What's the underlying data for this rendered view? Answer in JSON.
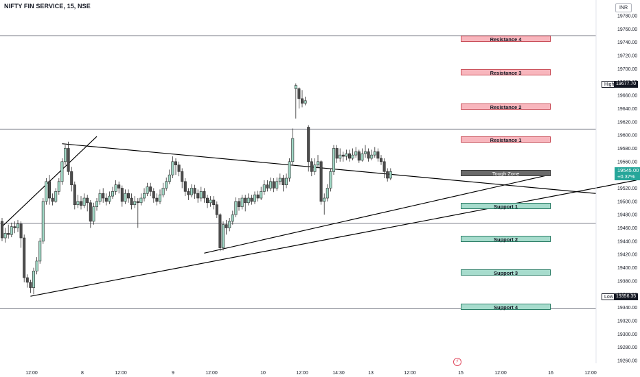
{
  "header": {
    "symbol_title": "NIFTY FIN SERVICE, 15, NSE",
    "currency": "INR"
  },
  "chart_data": {
    "type": "candlestick",
    "title": "NIFTY FIN SERVICE, 15, NSE",
    "currency": "INR",
    "y_axis": {
      "ticks": [
        19780,
        19760,
        19740,
        19720,
        19700,
        19680,
        19660,
        19640,
        19620,
        19600,
        19580,
        19560,
        19540,
        19520,
        19500,
        19480,
        19460,
        19440,
        19420,
        19400,
        19380,
        19360,
        19340,
        19320,
        19300,
        19280,
        19260
      ],
      "tick_labels": [
        "19780.00",
        "19760.00",
        "19740.00",
        "19720.00",
        "19700.00",
        "19680.00",
        "19660.00",
        "19640.00",
        "19620.00",
        "19600.00",
        "19580.00",
        "19560.00",
        "19540.00",
        "19520.00",
        "19500.00",
        "19480.00",
        "19460.00",
        "19440.00",
        "19420.00",
        "19400.00",
        "19380.00",
        "19360.00",
        "19340.00",
        "19320.00",
        "19300.00",
        "19280.00",
        "19260.00"
      ],
      "range": [
        19252,
        19790
      ]
    },
    "x_axis": {
      "tick_labels": [
        "12:00",
        "8",
        "12:00",
        "9",
        "12:00",
        "10",
        "12:00",
        "14:30",
        "13",
        "12:00",
        "15",
        "12:00",
        "16",
        "12:00"
      ]
    },
    "horizontal_levels": [
      19750,
      19609,
      19467,
      19338
    ],
    "annotations": {
      "high": {
        "label": "High",
        "value": "19677.70"
      },
      "low": {
        "label": "Low",
        "value": "19356.35"
      },
      "last": {
        "value": "19545.00",
        "change": "+0.37%"
      }
    },
    "zones": [
      {
        "label": "Resistance 4",
        "kind": "resistance",
        "value": 19745
      },
      {
        "label": "Resistance 3",
        "kind": "resistance",
        "value": 19695
      },
      {
        "label": "Resistance 2",
        "kind": "resistance",
        "value": 19643
      },
      {
        "label": "Resistance 1",
        "kind": "resistance",
        "value": 19593
      },
      {
        "label": "Tough Zone",
        "kind": "tough",
        "value": 19543
      },
      {
        "label": "Support 1",
        "kind": "support",
        "value": 19493
      },
      {
        "label": "Support 2",
        "kind": "support",
        "value": 19443
      },
      {
        "label": "Support 3",
        "kind": "support",
        "value": 19393
      },
      {
        "label": "Support 4",
        "kind": "support",
        "value": 19341
      }
    ],
    "candles": [
      [
        19470,
        19445,
        19475,
        19440
      ],
      [
        19445,
        19452,
        19460,
        19438
      ],
      [
        19452,
        19450,
        19465,
        19444
      ],
      [
        19450,
        19462,
        19468,
        19446
      ],
      [
        19462,
        19460,
        19470,
        19452
      ],
      [
        19460,
        19466,
        19472,
        19454
      ],
      [
        19466,
        19445,
        19470,
        19430
      ],
      [
        19445,
        19385,
        19450,
        19378
      ],
      [
        19385,
        19378,
        19390,
        19370
      ],
      [
        19378,
        19370,
        19382,
        19362
      ],
      [
        19370,
        19395,
        19400,
        19360
      ],
      [
        19395,
        19410,
        19416,
        19390
      ],
      [
        19410,
        19440,
        19445,
        19406
      ],
      [
        19440,
        19500,
        19505,
        19436
      ],
      [
        19500,
        19530,
        19535,
        19495
      ],
      [
        19530,
        19505,
        19540,
        19495
      ],
      [
        19505,
        19500,
        19512,
        19494
      ],
      [
        19500,
        19515,
        19520,
        19498
      ],
      [
        19515,
        19530,
        19535,
        19510
      ],
      [
        19530,
        19560,
        19565,
        19525
      ],
      [
        19560,
        19580,
        19585,
        19555
      ],
      [
        19580,
        19545,
        19590,
        19540
      ],
      [
        19545,
        19525,
        19552,
        19515
      ],
      [
        19525,
        19495,
        19530,
        19488
      ],
      [
        19495,
        19500,
        19510,
        19490
      ],
      [
        19500,
        19494,
        19508,
        19488
      ],
      [
        19494,
        19505,
        19512,
        19490
      ],
      [
        19505,
        19498,
        19510,
        19485
      ],
      [
        19498,
        19470,
        19502,
        19460
      ],
      [
        19470,
        19492,
        19498,
        19465
      ],
      [
        19492,
        19500,
        19505,
        19486
      ],
      [
        19500,
        19512,
        19518,
        19495
      ],
      [
        19512,
        19505,
        19520,
        19498
      ],
      [
        19505,
        19500,
        19512,
        19494
      ],
      [
        19500,
        19508,
        19515,
        19496
      ],
      [
        19508,
        19515,
        19522,
        19504
      ],
      [
        19515,
        19525,
        19532,
        19510
      ],
      [
        19525,
        19520,
        19530,
        19512
      ],
      [
        19520,
        19500,
        19524,
        19492
      ],
      [
        19500,
        19512,
        19518,
        19496
      ],
      [
        19512,
        19505,
        19518,
        19498
      ],
      [
        19505,
        19495,
        19512,
        19488
      ],
      [
        19495,
        19500,
        19508,
        19490
      ],
      [
        19500,
        19498,
        19505,
        19460
      ],
      [
        19498,
        19505,
        19512,
        19494
      ],
      [
        19505,
        19512,
        19520,
        19500
      ],
      [
        19512,
        19522,
        19528,
        19508
      ],
      [
        19522,
        19515,
        19528,
        19508
      ],
      [
        19515,
        19505,
        19520,
        19498
      ],
      [
        19505,
        19500,
        19512,
        19494
      ],
      [
        19500,
        19510,
        19518,
        19496
      ],
      [
        19510,
        19520,
        19528,
        19506
      ],
      [
        19520,
        19530,
        19536,
        19516
      ],
      [
        19530,
        19540,
        19548,
        19526
      ],
      [
        19540,
        19560,
        19568,
        19535
      ],
      [
        19560,
        19555,
        19565,
        19540
      ],
      [
        19555,
        19545,
        19560,
        19538
      ],
      [
        19545,
        19530,
        19550,
        19520
      ],
      [
        19530,
        19515,
        19535,
        19508
      ],
      [
        19515,
        19510,
        19520,
        19502
      ],
      [
        19510,
        19520,
        19526,
        19506
      ],
      [
        19520,
        19512,
        19525,
        19504
      ],
      [
        19512,
        19505,
        19518,
        19498
      ],
      [
        19505,
        19515,
        19522,
        19500
      ],
      [
        19515,
        19505,
        19520,
        19498
      ],
      [
        19505,
        19498,
        19510,
        19490
      ],
      [
        19498,
        19502,
        19508,
        19492
      ],
      [
        19502,
        19495,
        19508,
        19488
      ],
      [
        19495,
        19480,
        19500,
        19475
      ],
      [
        19480,
        19430,
        19482,
        19425
      ],
      [
        19430,
        19465,
        19470,
        19426
      ],
      [
        19465,
        19460,
        19472,
        19450
      ],
      [
        19460,
        19470,
        19475,
        19455
      ],
      [
        19470,
        19480,
        19486,
        19465
      ],
      [
        19480,
        19500,
        19506,
        19476
      ],
      [
        19500,
        19492,
        19505,
        19486
      ],
      [
        19492,
        19505,
        19510,
        19488
      ],
      [
        19505,
        19498,
        19510,
        19485
      ],
      [
        19498,
        19505,
        19512,
        19494
      ],
      [
        19505,
        19500,
        19510,
        19495
      ],
      [
        19500,
        19510,
        19515,
        19496
      ],
      [
        19510,
        19505,
        19516,
        19500
      ],
      [
        19505,
        19515,
        19522,
        19502
      ],
      [
        19515,
        19525,
        19532,
        19510
      ],
      [
        19525,
        19520,
        19532,
        19515
      ],
      [
        19520,
        19530,
        19536,
        19516
      ],
      [
        19530,
        19520,
        19535,
        19514
      ],
      [
        19520,
        19530,
        19536,
        19516
      ],
      [
        19530,
        19535,
        19542,
        19525
      ],
      [
        19535,
        19525,
        19540,
        19515
      ],
      [
        19525,
        19535,
        19542,
        19520
      ],
      [
        19535,
        19560,
        19565,
        19530
      ],
      [
        19560,
        19595,
        19610,
        19555
      ],
      [
        19670,
        19675,
        19678,
        19625
      ],
      [
        19670,
        19655,
        19672,
        19640
      ],
      [
        19655,
        19648,
        19668,
        19642
      ],
      [
        19648,
        19652,
        19658,
        19645
      ],
      [
        19612,
        19560,
        19615,
        19545
      ],
      [
        19560,
        19545,
        19565,
        19538
      ],
      [
        19545,
        19555,
        19565,
        19540
      ],
      [
        19555,
        19560,
        19570,
        19550
      ],
      [
        19560,
        19500,
        19562,
        19495
      ],
      [
        19500,
        19505,
        19512,
        19480
      ],
      [
        19505,
        19520,
        19526,
        19500
      ],
      [
        19520,
        19545,
        19550,
        19515
      ],
      [
        19545,
        19580,
        19585,
        19540
      ],
      [
        19580,
        19565,
        19585,
        19558
      ],
      [
        19565,
        19570,
        19580,
        19560
      ],
      [
        19570,
        19568,
        19575,
        19560
      ],
      [
        19568,
        19572,
        19578,
        19562
      ],
      [
        19572,
        19565,
        19578,
        19560
      ],
      [
        19565,
        19570,
        19580,
        19562
      ],
      [
        19570,
        19575,
        19582,
        19566
      ],
      [
        19575,
        19562,
        19578,
        19558
      ],
      [
        19562,
        19572,
        19580,
        19560
      ],
      [
        19572,
        19575,
        19585,
        19566
      ],
      [
        19575,
        19565,
        19580,
        19560
      ],
      [
        19565,
        19570,
        19578,
        19562
      ],
      [
        19570,
        19575,
        19582,
        19566
      ],
      [
        19575,
        19565,
        19580,
        19560
      ],
      [
        19565,
        19560,
        19570,
        19555
      ],
      [
        19560,
        19545,
        19565,
        19535
      ],
      [
        19545,
        19535,
        19550,
        19530
      ],
      [
        19535,
        19545,
        19550,
        19532
      ]
    ],
    "trendlines": [
      {
        "from": [
          "c0",
          19462
        ],
        "to": [
          "c30",
          19598
        ]
      },
      {
        "from": [
          "c19",
          19587
        ],
        "to": [
          "f20",
          19512
        ]
      },
      {
        "from": [
          "c9",
          19357
        ],
        "to": [
          "f26",
          19532
        ]
      },
      {
        "from": [
          "c64",
          19422
        ],
        "to": [
          "f13",
          19540
        ]
      }
    ]
  }
}
